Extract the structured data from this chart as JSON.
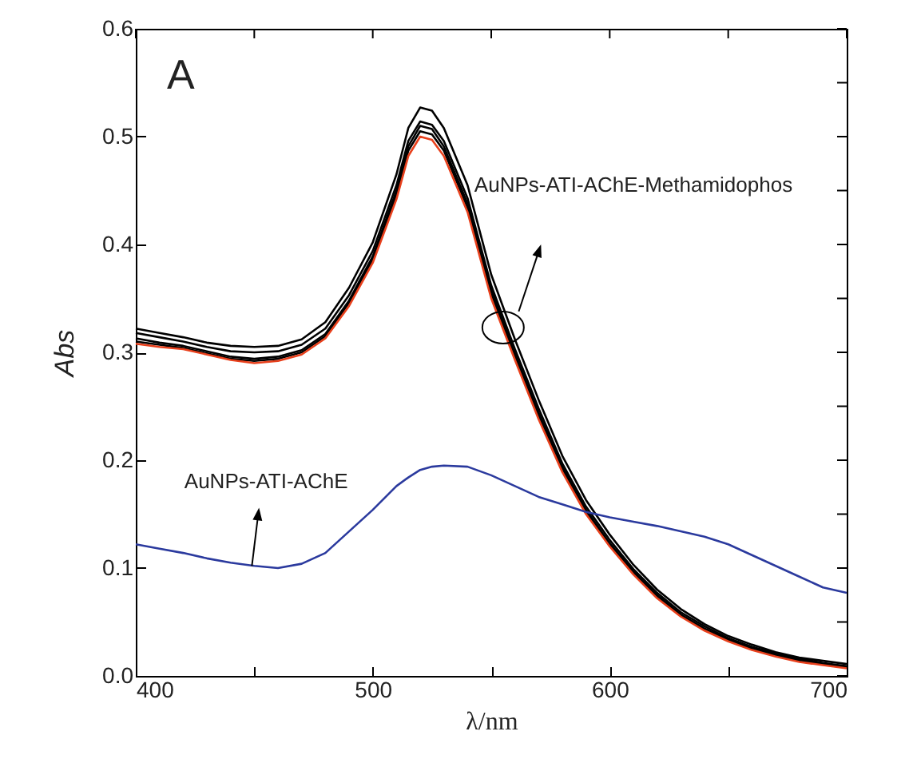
{
  "chart_data": {
    "type": "line",
    "xlabel": "λ/nm",
    "ylabel": "Abs",
    "x": [
      400,
      410,
      420,
      430,
      440,
      450,
      460,
      470,
      480,
      490,
      500,
      510,
      515,
      520,
      525,
      530,
      540,
      550,
      560,
      570,
      580,
      590,
      600,
      610,
      620,
      630,
      640,
      650,
      660,
      670,
      680,
      690,
      700
    ],
    "series": [
      {
        "color": "#000000",
        "values": [
          0.322,
          0.318,
          0.314,
          0.309,
          0.306,
          0.305,
          0.306,
          0.312,
          0.328,
          0.36,
          0.402,
          0.465,
          0.508,
          0.527,
          0.524,
          0.508,
          0.455,
          0.372,
          0.312,
          0.256,
          0.204,
          0.163,
          0.131,
          0.103,
          0.08,
          0.062,
          0.048,
          0.037,
          0.029,
          0.022,
          0.017,
          0.014,
          0.011
        ]
      },
      {
        "color": "#000000",
        "values": [
          0.318,
          0.314,
          0.31,
          0.305,
          0.301,
          0.3,
          0.301,
          0.307,
          0.322,
          0.353,
          0.394,
          0.455,
          0.496,
          0.514,
          0.511,
          0.496,
          0.443,
          0.362,
          0.303,
          0.248,
          0.197,
          0.157,
          0.126,
          0.099,
          0.077,
          0.059,
          0.046,
          0.035,
          0.027,
          0.021,
          0.016,
          0.012,
          0.009
        ]
      },
      {
        "color": "#000000",
        "values": [
          0.313,
          0.309,
          0.306,
          0.301,
          0.296,
          0.294,
          0.296,
          0.302,
          0.317,
          0.348,
          0.389,
          0.45,
          0.491,
          0.51,
          0.507,
          0.491,
          0.438,
          0.358,
          0.299,
          0.244,
          0.194,
          0.154,
          0.123,
          0.097,
          0.075,
          0.057,
          0.044,
          0.034,
          0.026,
          0.02,
          0.015,
          0.011,
          0.008
        ]
      },
      {
        "color": "#000000",
        "values": [
          0.31,
          0.307,
          0.304,
          0.299,
          0.294,
          0.292,
          0.294,
          0.3,
          0.315,
          0.346,
          0.386,
          0.446,
          0.487,
          0.505,
          0.502,
          0.487,
          0.434,
          0.354,
          0.296,
          0.241,
          0.192,
          0.152,
          0.122,
          0.096,
          0.074,
          0.056,
          0.043,
          0.033,
          0.025,
          0.019,
          0.014,
          0.011,
          0.008
        ]
      },
      {
        "color": "#e8401c",
        "values": [
          0.308,
          0.305,
          0.303,
          0.298,
          0.293,
          0.29,
          0.292,
          0.298,
          0.313,
          0.343,
          0.383,
          0.442,
          0.482,
          0.5,
          0.497,
          0.482,
          0.43,
          0.35,
          0.293,
          0.238,
          0.189,
          0.15,
          0.12,
          0.094,
          0.072,
          0.055,
          0.042,
          0.032,
          0.024,
          0.018,
          0.013,
          0.01,
          0.007
        ]
      },
      {
        "color": "#2b3a9e",
        "values": [
          0.122,
          0.118,
          0.114,
          0.109,
          0.105,
          0.102,
          0.1,
          0.104,
          0.114,
          0.134,
          0.154,
          0.176,
          0.184,
          0.191,
          0.194,
          0.195,
          0.194,
          0.186,
          0.176,
          0.166,
          0.159,
          0.152,
          0.147,
          0.143,
          0.139,
          0.134,
          0.129,
          0.122,
          0.112,
          0.102,
          0.092,
          0.082,
          0.077
        ]
      }
    ],
    "xlim": [
      400,
      700
    ],
    "xticks": [
      400,
      {
        "value": 450,
        "label": null
      },
      500,
      {
        "value": 550,
        "label": null
      },
      600,
      {
        "value": 650,
        "label": null
      },
      700
    ],
    "ylim": [
      0,
      0.6
    ],
    "yticks": [
      {
        "value": 0,
        "label": "0.0"
      },
      {
        "value": 0.05,
        "label": null
      },
      0.1,
      {
        "value": 0.15,
        "label": null
      },
      0.2,
      {
        "value": 0.25,
        "label": null
      },
      0.3,
      {
        "value": 0.35,
        "label": null
      },
      0.4,
      {
        "value": 0.45,
        "label": null
      },
      0.5,
      {
        "value": 0.55,
        "label": null
      },
      0.6
    ],
    "annotations": [
      "A",
      "AuNPs-ATI-AChE-Methamidophos",
      "AuNPs-ATI-AChE"
    ],
    "grid": false,
    "marker": "none",
    "line_style": "solid"
  }
}
